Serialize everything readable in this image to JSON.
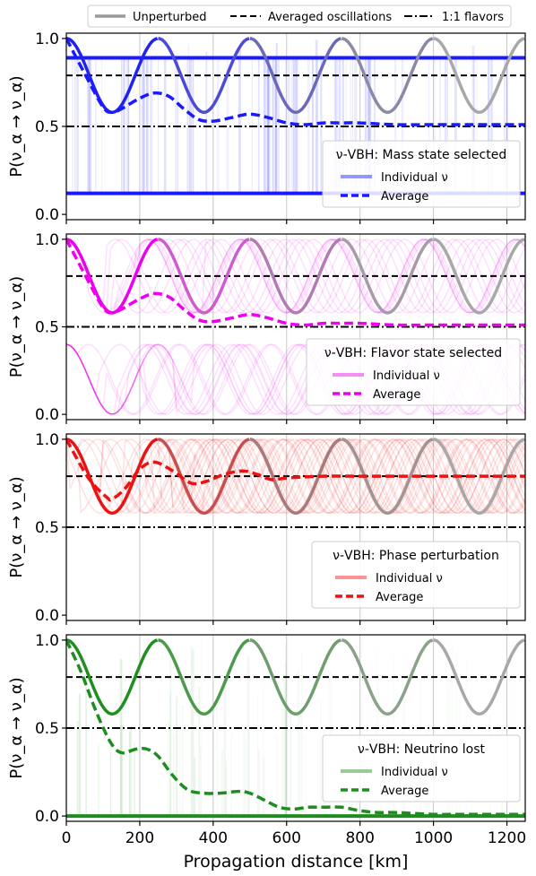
{
  "figure": {
    "top_legend": [
      {
        "label": "Unperturbed",
        "style": "solid",
        "color": "#999999"
      },
      {
        "label": "Averaged oscillations",
        "style": "dashed",
        "color": "#000000"
      },
      {
        "label": "1:1 flavors",
        "style": "dashdot",
        "color": "#000000"
      }
    ],
    "shared_xlabel": "Propagation distance [km]",
    "shared_ylabel": "P(ν_α → ν_α)"
  },
  "chart_data": [
    {
      "type": "line",
      "panel": "Mass state selected",
      "color": "#1a1aff",
      "legend_title": "ν-VBH: Mass state selected",
      "legend_items": [
        "Individual ν",
        "Average"
      ],
      "xlabel": "Propagation distance [km]",
      "ylabel": "P(ν_α → ν_α)",
      "xlim": [
        0,
        1250
      ],
      "ylim": [
        -0.03,
        1.03
      ],
      "xticks": [
        0,
        200,
        400,
        600,
        800,
        1000,
        1200
      ],
      "yticks": [
        0.0,
        0.5,
        1.0
      ],
      "grid": "x",
      "legend_position": "right",
      "reference_lines": {
        "averaged_oscillations": 0.79,
        "flavors_1_1": 0.5
      },
      "series": [
        {
          "name": "Unperturbed",
          "x": [
            0,
            62,
            125,
            188,
            250,
            312,
            375,
            438,
            500,
            562,
            625,
            688,
            750,
            812,
            875,
            938,
            1000,
            1062,
            1125,
            1188,
            1250
          ],
          "values": [
            1.0,
            0.79,
            0.58,
            0.79,
            1.0,
            0.79,
            0.58,
            0.79,
            1.0,
            0.79,
            0.58,
            0.79,
            1.0,
            0.79,
            0.58,
            0.79,
            1.0,
            0.79,
            0.58,
            0.79,
            1.0
          ]
        },
        {
          "name": "Average",
          "x": [
            0,
            50,
            100,
            125,
            150,
            200,
            240,
            280,
            320,
            360,
            400,
            450,
            500,
            550,
            600,
            650,
            700,
            750,
            800,
            900,
            1000,
            1100,
            1250
          ],
          "values": [
            1.0,
            0.8,
            0.61,
            0.58,
            0.6,
            0.66,
            0.69,
            0.67,
            0.6,
            0.54,
            0.53,
            0.55,
            0.57,
            0.55,
            0.52,
            0.51,
            0.52,
            0.52,
            0.52,
            0.51,
            0.51,
            0.51,
            0.51
          ]
        },
        {
          "name": "Individual ν (upper band)",
          "x": [
            0,
            1250
          ],
          "values": [
            0.89,
            0.89
          ]
        },
        {
          "name": "Individual ν (lower band)",
          "x": [
            0,
            1250
          ],
          "values": [
            0.12,
            0.12
          ]
        }
      ]
    },
    {
      "type": "line",
      "panel": "Flavor state selected",
      "color": "#ee00ee",
      "legend_title": "ν-VBH: Flavor state selected",
      "legend_items": [
        "Individual ν",
        "Average"
      ],
      "xlabel": "Propagation distance [km]",
      "ylabel": "P(ν_α → ν_α)",
      "xlim": [
        0,
        1250
      ],
      "ylim": [
        -0.03,
        1.03
      ],
      "xticks": [
        0,
        200,
        400,
        600,
        800,
        1000,
        1200
      ],
      "yticks": [
        0.0,
        0.5,
        1.0
      ],
      "grid": "x",
      "legend_position": "right",
      "reference_lines": {
        "averaged_oscillations": 0.79,
        "flavors_1_1": 0.5
      },
      "series": [
        {
          "name": "Unperturbed",
          "x": [
            0,
            62,
            125,
            188,
            250,
            312,
            375,
            438,
            500,
            562,
            625,
            688,
            750,
            812,
            875,
            938,
            1000,
            1062,
            1125,
            1188,
            1250
          ],
          "values": [
            1.0,
            0.79,
            0.58,
            0.79,
            1.0,
            0.79,
            0.58,
            0.79,
            1.0,
            0.79,
            0.58,
            0.79,
            1.0,
            0.79,
            0.58,
            0.79,
            1.0,
            0.79,
            0.58,
            0.79,
            1.0
          ]
        },
        {
          "name": "Average",
          "x": [
            0,
            50,
            100,
            125,
            150,
            200,
            240,
            280,
            320,
            360,
            400,
            450,
            500,
            550,
            600,
            650,
            700,
            750,
            800,
            900,
            1000,
            1100,
            1250
          ],
          "values": [
            1.0,
            0.8,
            0.61,
            0.58,
            0.6,
            0.66,
            0.69,
            0.67,
            0.6,
            0.54,
            0.53,
            0.55,
            0.57,
            0.55,
            0.52,
            0.51,
            0.52,
            0.52,
            0.52,
            0.51,
            0.51,
            0.51,
            0.51
          ]
        }
      ]
    },
    {
      "type": "line",
      "panel": "Phase perturbation",
      "color": "#ee1111",
      "legend_title": "ν-VBH: Phase perturbation",
      "legend_items": [
        "Individual ν",
        "Average"
      ],
      "xlabel": "Propagation distance [km]",
      "ylabel": "P(ν_α → ν_α)",
      "xlim": [
        0,
        1250
      ],
      "ylim": [
        -0.03,
        1.03
      ],
      "xticks": [
        0,
        200,
        400,
        600,
        800,
        1000,
        1200
      ],
      "yticks": [
        0.0,
        0.5,
        1.0
      ],
      "grid": "x",
      "legend_position": "right",
      "reference_lines": {
        "averaged_oscillations": 0.79,
        "flavors_1_1": 0.5
      },
      "series": [
        {
          "name": "Unperturbed",
          "x": [
            0,
            62,
            125,
            188,
            250,
            312,
            375,
            438,
            500,
            562,
            625,
            688,
            750,
            812,
            875,
            938,
            1000,
            1062,
            1125,
            1188,
            1250
          ],
          "values": [
            1.0,
            0.79,
            0.58,
            0.79,
            1.0,
            0.79,
            0.58,
            0.79,
            1.0,
            0.79,
            0.58,
            0.79,
            1.0,
            0.79,
            0.58,
            0.79,
            1.0,
            0.79,
            0.58,
            0.79,
            1.0
          ]
        },
        {
          "name": "Average",
          "x": [
            0,
            60,
            110,
            125,
            160,
            200,
            240,
            290,
            340,
            380,
            430,
            480,
            520,
            560,
            600,
            700,
            800,
            900,
            1000,
            1100,
            1250
          ],
          "values": [
            1.0,
            0.78,
            0.67,
            0.66,
            0.72,
            0.83,
            0.87,
            0.82,
            0.75,
            0.76,
            0.8,
            0.82,
            0.8,
            0.77,
            0.78,
            0.79,
            0.79,
            0.79,
            0.79,
            0.79,
            0.79
          ]
        }
      ]
    },
    {
      "type": "line",
      "panel": "Neutrino lost",
      "color": "#1e8c1e",
      "legend_title": "ν-VBH: Neutrino lost",
      "legend_items": [
        "Individual ν",
        "Average"
      ],
      "xlabel": "Propagation distance [km]",
      "ylabel": "P(ν_α → ν_α)",
      "xlim": [
        0,
        1250
      ],
      "ylim": [
        -0.03,
        1.03
      ],
      "xticks": [
        0,
        200,
        400,
        600,
        800,
        1000,
        1200
      ],
      "yticks": [
        0.0,
        0.5,
        1.0
      ],
      "grid": "x",
      "legend_position": "right",
      "reference_lines": {
        "averaged_oscillations": 0.79,
        "flavors_1_1": 0.5
      },
      "series": [
        {
          "name": "Unperturbed",
          "x": [
            0,
            62,
            125,
            188,
            250,
            312,
            375,
            438,
            500,
            562,
            625,
            688,
            750,
            812,
            875,
            938,
            1000,
            1062,
            1125,
            1188,
            1250
          ],
          "values": [
            1.0,
            0.79,
            0.58,
            0.79,
            1.0,
            0.79,
            0.58,
            0.79,
            1.0,
            0.79,
            0.58,
            0.79,
            1.0,
            0.79,
            0.58,
            0.79,
            1.0,
            0.79,
            0.58,
            0.79,
            1.0
          ]
        },
        {
          "name": "Average",
          "x": [
            0,
            40,
            80,
            120,
            150,
            190,
            220,
            250,
            290,
            330,
            370,
            420,
            470,
            500,
            540,
            580,
            620,
            660,
            700,
            750,
            800,
            850,
            900,
            1000,
            1100,
            1250
          ],
          "values": [
            1.0,
            0.82,
            0.6,
            0.42,
            0.36,
            0.38,
            0.38,
            0.34,
            0.23,
            0.15,
            0.13,
            0.13,
            0.14,
            0.13,
            0.09,
            0.05,
            0.04,
            0.05,
            0.05,
            0.05,
            0.03,
            0.02,
            0.02,
            0.01,
            0.01,
            0.01
          ]
        },
        {
          "name": "Individual ν (lost)",
          "x": [
            0,
            1250
          ],
          "values": [
            0.0,
            0.0
          ]
        }
      ]
    }
  ]
}
